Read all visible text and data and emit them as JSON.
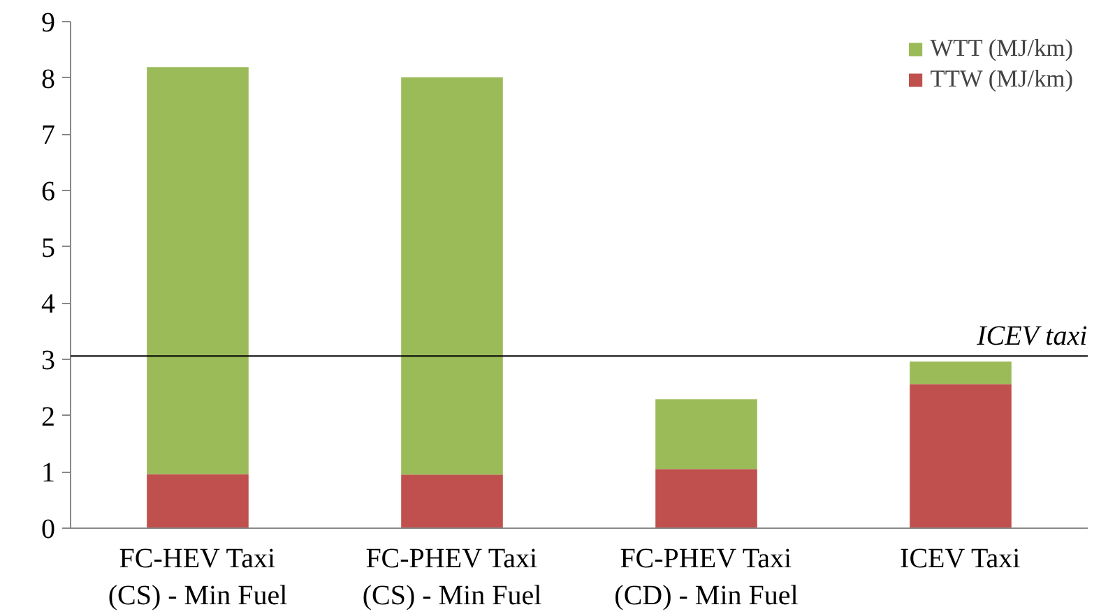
{
  "chart_data": {
    "type": "bar",
    "stacked": true,
    "categories": [
      "FC-HEV Taxi\n(CS) - Min Fuel",
      "FC-PHEV Taxi\n(CS) - Min Fuel",
      "FC-PHEV Taxi\n(CD) - Min Fuel",
      "ICEV Taxi"
    ],
    "series": [
      {
        "name": "TTW (MJ/km)",
        "color": "#c0504d",
        "values": [
          0.96,
          0.95,
          1.05,
          2.56
        ]
      },
      {
        "name": "WTT (MJ/km)",
        "color": "#9bbb59",
        "values": [
          7.23,
          7.06,
          1.24,
          0.4
        ]
      }
    ],
    "ylim": [
      0,
      9
    ],
    "yticks": [
      0,
      1,
      2,
      3,
      4,
      5,
      6,
      7,
      8,
      9
    ],
    "ref_lines": [
      {
        "axis": "y",
        "value": 3.06,
        "label": "ICEV taxi",
        "color": "#000000"
      }
    ],
    "legend": "top right",
    "grid": false
  }
}
